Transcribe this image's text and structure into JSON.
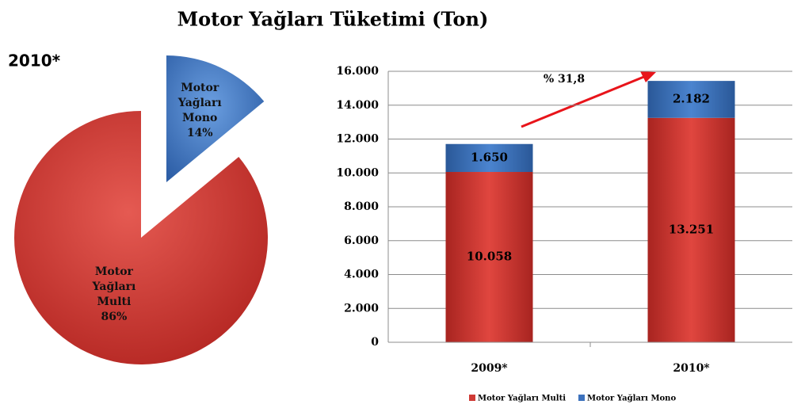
{
  "title": "Motor Yağları Tüketimi (Ton)",
  "chart_data": [
    {
      "type": "pie",
      "title": "2010*",
      "categories": [
        "Motor Yağları Mono",
        "Motor Yağları Multi"
      ],
      "values": [
        14,
        86
      ],
      "value_labels": [
        "14%",
        "86%"
      ],
      "colors": [
        "#3d72bd",
        "#cf3a35"
      ]
    },
    {
      "type": "bar",
      "stacked": true,
      "categories": [
        "2009*",
        "2010*"
      ],
      "series": [
        {
          "name": "Motor Yağları Multi",
          "color": "#cf3a35",
          "values": [
            10058,
            13251
          ],
          "value_labels": [
            "10.058",
            "13.251"
          ]
        },
        {
          "name": "Motor Yağları Mono",
          "color": "#3d72bd",
          "values": [
            1650,
            2182
          ],
          "value_labels": [
            "1.650",
            "2.182"
          ]
        }
      ],
      "ylim": [
        0,
        16000
      ],
      "yticks": [
        0,
        {
          "value": 2000,
          "label": "2.000"
        },
        {
          "value": 4000,
          "label": "4.000"
        },
        {
          "value": 6000,
          "label": "6.000"
        },
        {
          "value": 8000,
          "label": "8.000"
        },
        {
          "value": 10000,
          "label": "10.000"
        },
        {
          "value": 12000,
          "label": "12.000"
        },
        {
          "value": 14000,
          "label": "14.000"
        },
        {
          "value": 16000,
          "label": "16.000"
        }
      ],
      "grid": true,
      "legend": "bottom",
      "annotations": [
        "% 31,8"
      ]
    }
  ]
}
